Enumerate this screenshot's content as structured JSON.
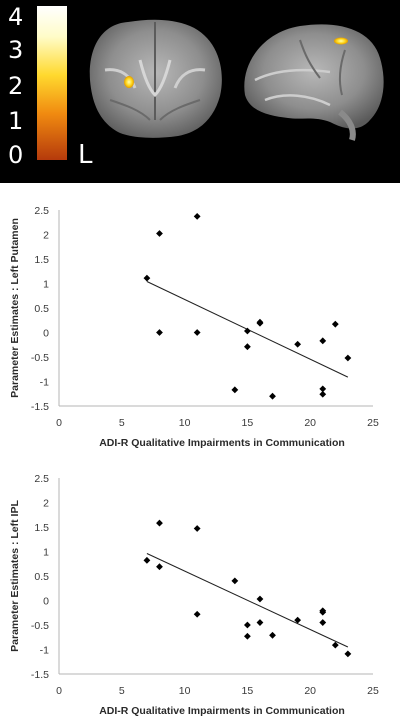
{
  "brain_image": {
    "colorbar_ticks": [
      "4",
      "3",
      "2",
      "1",
      "0"
    ],
    "hemisphere_label": "L",
    "views": [
      "coronal-slice",
      "sagittal-slice"
    ]
  },
  "chart_data": [
    {
      "type": "scatter",
      "ylabel": "Parameter Estimates : Left Putamen",
      "xlabel": "ADI-R Qualitative Impairments in Communication",
      "xlim": [
        0,
        25
      ],
      "ylim": [
        -1.5,
        2.5
      ],
      "x_ticks": [
        "0",
        "5",
        "10",
        "15",
        "20",
        "25"
      ],
      "y_ticks": [
        "2.5",
        "2",
        "1.5",
        "1",
        "0.5",
        "0",
        "-0.5",
        "-1",
        "-1.5"
      ],
      "points": [
        {
          "x": 7,
          "y": 1.11
        },
        {
          "x": 8,
          "y": 2.02
        },
        {
          "x": 8,
          "y": 0.0
        },
        {
          "x": 11,
          "y": 2.37
        },
        {
          "x": 11,
          "y": 0.0
        },
        {
          "x": 14,
          "y": -1.17
        },
        {
          "x": 15,
          "y": 0.03
        },
        {
          "x": 15,
          "y": -0.29
        },
        {
          "x": 16,
          "y": 0.21
        },
        {
          "x": 16,
          "y": 0.19
        },
        {
          "x": 17,
          "y": -1.3
        },
        {
          "x": 19,
          "y": -0.24
        },
        {
          "x": 21,
          "y": -0.17
        },
        {
          "x": 21,
          "y": -1.15
        },
        {
          "x": 21,
          "y": -1.26
        },
        {
          "x": 22,
          "y": 0.17
        },
        {
          "x": 23,
          "y": -0.52
        }
      ],
      "trendline": {
        "x": [
          7,
          23
        ],
        "y": [
          1.04,
          -0.91
        ]
      },
      "grid": false,
      "marker": "diamond"
    },
    {
      "type": "scatter",
      "ylabel": "Parameter Estimates : Left IPL",
      "xlabel": "ADI-R Qualitative Impairments in Communication",
      "xlim": [
        0,
        25
      ],
      "ylim": [
        -1.5,
        2.5
      ],
      "x_ticks": [
        "0",
        "5",
        "10",
        "15",
        "20",
        "25"
      ],
      "y_ticks": [
        "2.5",
        "2",
        "1.5",
        "1",
        "0.5",
        "0",
        "-0.5",
        "-1",
        "-1.5"
      ],
      "points": [
        {
          "x": 7,
          "y": 0.82
        },
        {
          "x": 8,
          "y": 1.58
        },
        {
          "x": 8,
          "y": 0.69
        },
        {
          "x": 11,
          "y": 1.47
        },
        {
          "x": 11,
          "y": -0.28
        },
        {
          "x": 14,
          "y": 0.4
        },
        {
          "x": 15,
          "y": -0.5
        },
        {
          "x": 15,
          "y": -0.73
        },
        {
          "x": 16,
          "y": 0.03
        },
        {
          "x": 16,
          "y": -0.45
        },
        {
          "x": 17,
          "y": -0.71
        },
        {
          "x": 19,
          "y": -0.4
        },
        {
          "x": 21,
          "y": -0.21
        },
        {
          "x": 21,
          "y": -0.24
        },
        {
          "x": 21,
          "y": -0.45
        },
        {
          "x": 22,
          "y": -0.91
        },
        {
          "x": 23,
          "y": -1.09
        }
      ],
      "trendline": {
        "x": [
          7,
          23
        ],
        "y": [
          0.96,
          -0.95
        ]
      },
      "grid": false,
      "marker": "diamond"
    }
  ]
}
